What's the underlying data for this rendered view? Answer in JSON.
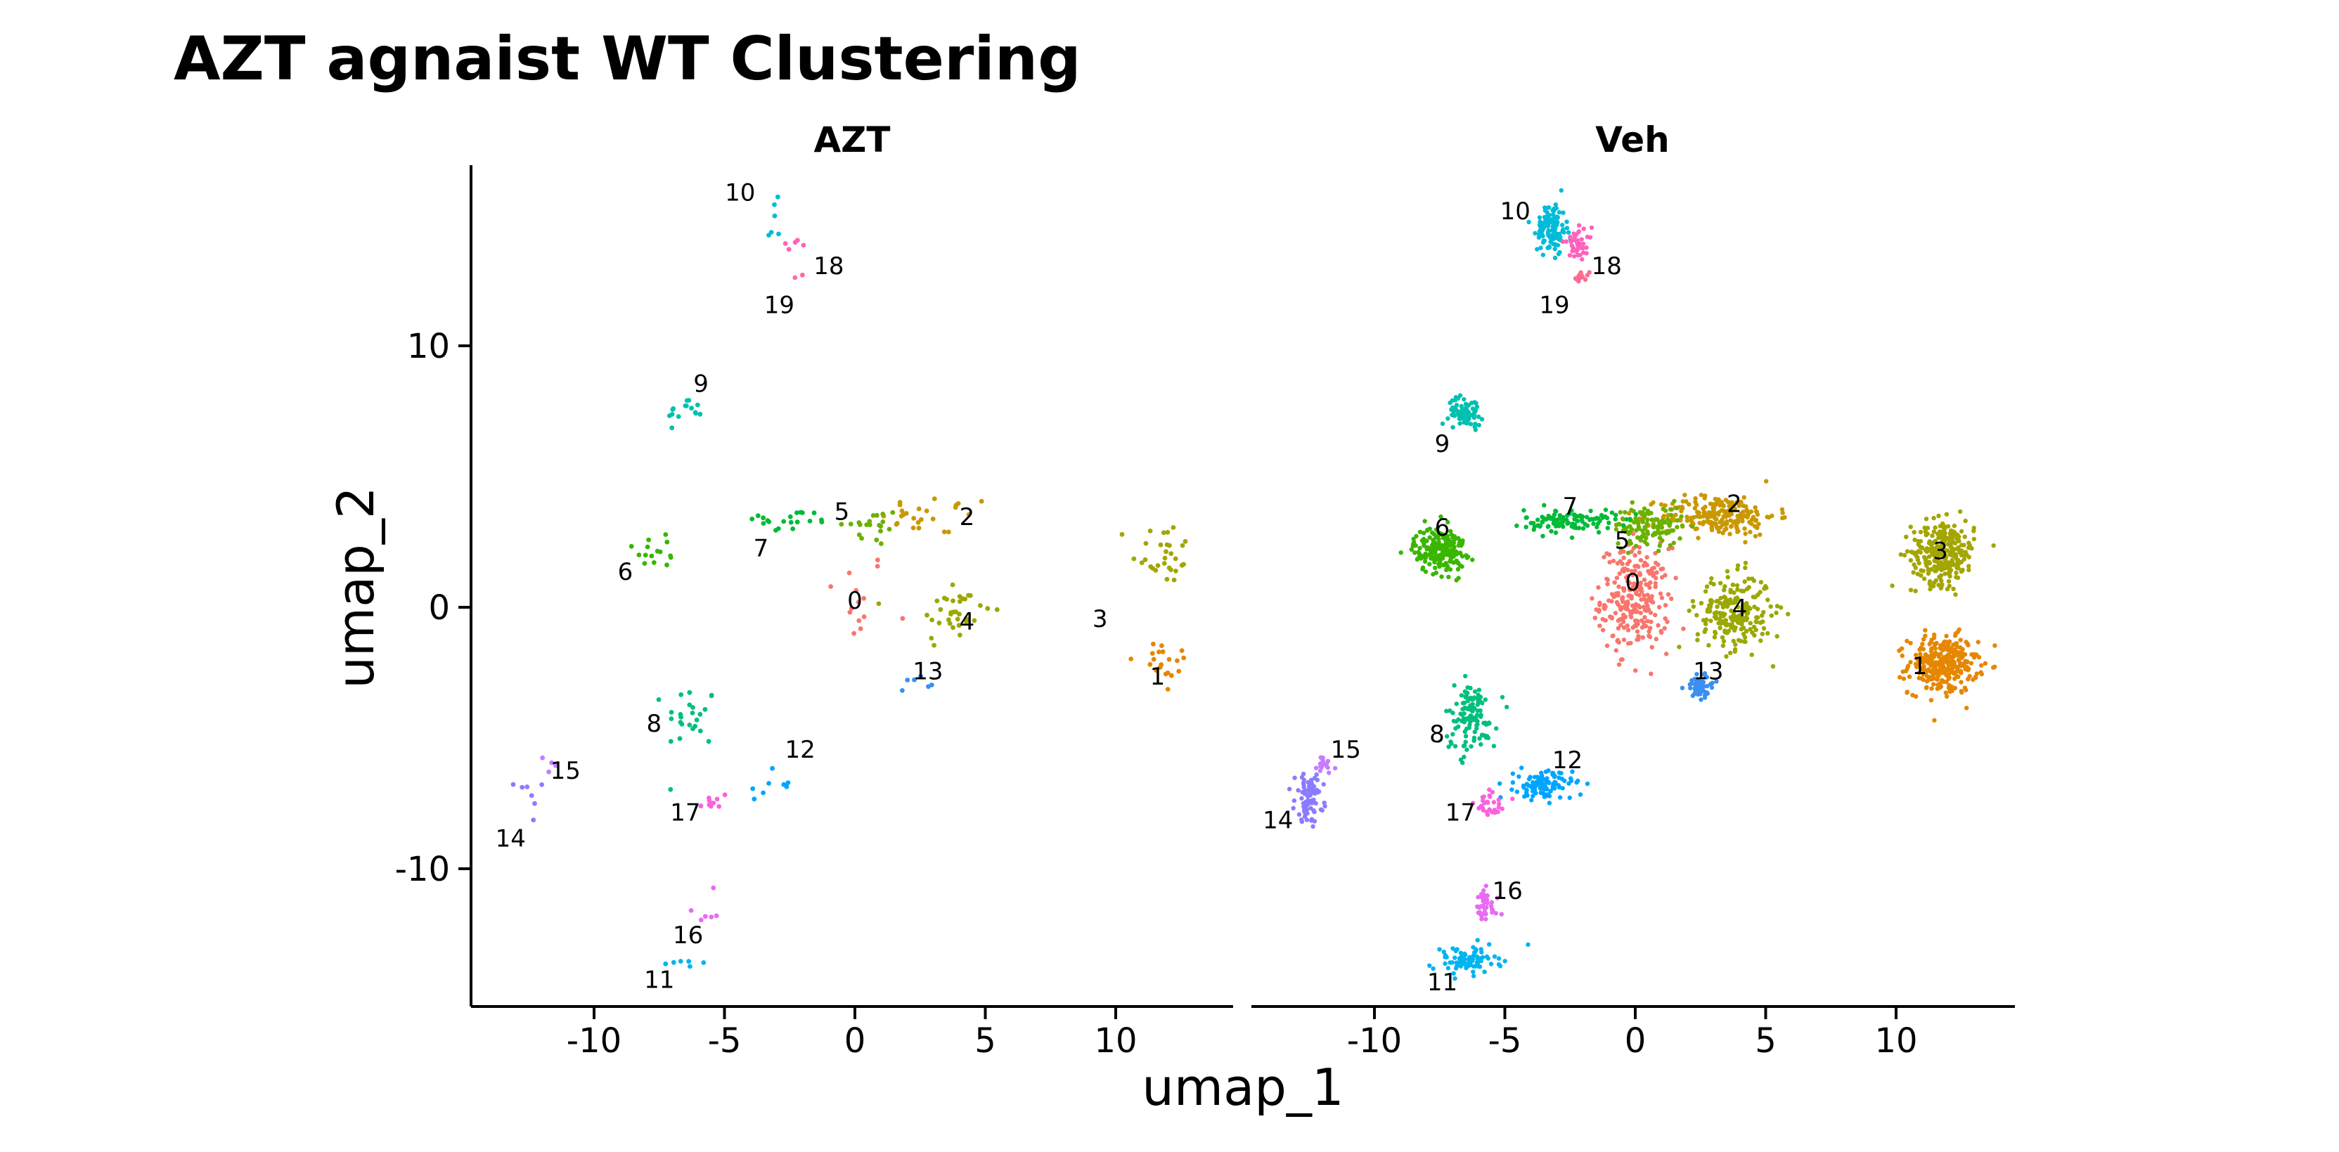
{
  "title": "AZT agnaist WT Clustering",
  "chart_data": {
    "type": "scatter",
    "title": "AZT agnaist WT Clustering",
    "xlabel": "umap_1",
    "ylabel": "umap_2",
    "xlim": [
      -14.5,
      14.5
    ],
    "ylim": [
      -15.2,
      17.0
    ],
    "x_ticks": [
      "-10",
      "-5",
      "0",
      "5",
      "10"
    ],
    "y_ticks": [
      "-10",
      "0",
      "10"
    ],
    "facets": [
      "AZT",
      "Veh"
    ],
    "clusters": [
      {
        "id": "0",
        "color": "#F8766D",
        "label_xy": [
          0.0,
          0.3
        ],
        "spread": [
          1.2,
          1.8
        ],
        "count": [
          14,
          260
        ]
      },
      {
        "id": "1",
        "color": "#E58700",
        "label_xy": [
          11.8,
          -2.2
        ],
        "spread": [
          1.2,
          1.0
        ],
        "count": [
          20,
          300
        ]
      },
      {
        "id": "2",
        "color": "#C99800",
        "label_xy": [
          3.2,
          3.5
        ],
        "spread": [
          2.0,
          0.7
        ],
        "count": [
          25,
          220
        ]
      },
      {
        "id": "3",
        "color": "#A3A500",
        "label_xy": [
          11.8,
          2.1
        ],
        "spread": [
          1.1,
          1.1
        ],
        "count": [
          30,
          280
        ]
      },
      {
        "id": "4",
        "color": "#9AA800",
        "label_xy": [
          3.8,
          -0.2
        ],
        "spread": [
          1.3,
          1.3
        ],
        "count": [
          35,
          230
        ]
      },
      {
        "id": "5",
        "color": "#6BB100",
        "label_xy": [
          0.5,
          3.1
        ],
        "spread": [
          1.2,
          0.7
        ],
        "count": [
          20,
          120
        ]
      },
      {
        "id": "6",
        "color": "#39B600",
        "label_xy": [
          -7.5,
          2.2
        ],
        "spread": [
          0.9,
          0.8
        ],
        "count": [
          15,
          200
        ]
      },
      {
        "id": "7",
        "color": "#00BA38",
        "label_xy": [
          -2.5,
          3.3
        ],
        "spread": [
          1.6,
          0.4
        ],
        "count": [
          20,
          110
        ]
      },
      {
        "id": "8",
        "color": "#00BF7D",
        "label_xy": [
          -6.3,
          -4.2
        ],
        "spread": [
          0.9,
          1.2
        ],
        "count": [
          25,
          120
        ]
      },
      {
        "id": "9",
        "color": "#00C0AF",
        "label_xy": [
          -6.5,
          7.5
        ],
        "spread": [
          0.6,
          0.5
        ],
        "count": [
          15,
          70
        ]
      },
      {
        "id": "10",
        "color": "#00BCD8",
        "label_xy": [
          -3.2,
          14.5
        ],
        "spread": [
          0.5,
          0.9
        ],
        "count": [
          6,
          120
        ]
      },
      {
        "id": "11",
        "color": "#00B4EF",
        "label_xy": [
          -6.5,
          -13.5
        ],
        "spread": [
          1.2,
          0.5
        ],
        "count": [
          6,
          80
        ]
      },
      {
        "id": "12",
        "color": "#00A5FF",
        "label_xy": [
          -3.5,
          -6.8
        ],
        "spread": [
          1.0,
          0.5
        ],
        "count": [
          8,
          110
        ]
      },
      {
        "id": "13",
        "color": "#3A8FF0",
        "label_xy": [
          2.5,
          -3.0
        ],
        "spread": [
          0.5,
          0.4
        ],
        "count": [
          6,
          60
        ]
      },
      {
        "id": "14",
        "color": "#8B7BFF",
        "label_xy": [
          -12.5,
          -7.3
        ],
        "spread": [
          0.5,
          0.8
        ],
        "count": [
          7,
          80
        ]
      },
      {
        "id": "15",
        "color": "#C77CFF",
        "label_xy": [
          -12.0,
          -6.0
        ],
        "spread": [
          0.4,
          0.5
        ],
        "count": [
          4,
          20
        ]
      },
      {
        "id": "16",
        "color": "#E76BF3",
        "label_xy": [
          -5.8,
          -11.5
        ],
        "spread": [
          0.5,
          0.6
        ],
        "count": [
          6,
          40
        ]
      },
      {
        "id": "17",
        "color": "#FA62DB",
        "label_xy": [
          -5.5,
          -7.5
        ],
        "spread": [
          0.6,
          0.6
        ],
        "count": [
          10,
          30
        ]
      },
      {
        "id": "18",
        "color": "#FF62BC",
        "label_xy": [
          -2.2,
          13.9
        ],
        "spread": [
          0.5,
          0.5
        ],
        "count": [
          5,
          40
        ]
      },
      {
        "id": "19",
        "color": "#FF6C91",
        "label_xy": [
          -2.1,
          12.6
        ],
        "spread": [
          0.3,
          0.2
        ],
        "count": [
          2,
          15
        ]
      }
    ],
    "cluster_labels": [
      [
        {
          "id": "10",
          "xy": [
            -4.4,
            15.8
          ]
        },
        {
          "id": "18",
          "xy": [
            -1.0,
            13.0
          ]
        },
        {
          "id": "19",
          "xy": [
            -2.9,
            11.5
          ]
        },
        {
          "id": "9",
          "xy": [
            -5.9,
            8.5
          ]
        },
        {
          "id": "5",
          "xy": [
            -0.5,
            3.6
          ]
        },
        {
          "id": "2",
          "xy": [
            4.3,
            3.4
          ]
        },
        {
          "id": "7",
          "xy": [
            -3.6,
            2.2
          ]
        },
        {
          "id": "6",
          "xy": [
            -8.8,
            1.3
          ]
        },
        {
          "id": "0",
          "xy": [
            0.0,
            0.2
          ]
        },
        {
          "id": "4",
          "xy": [
            4.3,
            -0.6
          ]
        },
        {
          "id": "3",
          "xy": [
            9.4,
            -0.5
          ]
        },
        {
          "id": "13",
          "xy": [
            2.8,
            -2.5
          ]
        },
        {
          "id": "1",
          "xy": [
            11.6,
            -2.7
          ]
        },
        {
          "id": "8",
          "xy": [
            -7.7,
            -4.5
          ]
        },
        {
          "id": "12",
          "xy": [
            -2.1,
            -5.5
          ]
        },
        {
          "id": "15",
          "xy": [
            -11.1,
            -6.3
          ]
        },
        {
          "id": "17",
          "xy": [
            -6.5,
            -7.9
          ]
        },
        {
          "id": "14",
          "xy": [
            -13.2,
            -8.9
          ]
        },
        {
          "id": "16",
          "xy": [
            -6.4,
            -12.6
          ]
        },
        {
          "id": "11",
          "xy": [
            -7.5,
            -14.3
          ]
        }
      ],
      [
        {
          "id": "10",
          "xy": [
            -4.6,
            15.1
          ]
        },
        {
          "id": "18",
          "xy": [
            -1.1,
            13.0
          ]
        },
        {
          "id": "19",
          "xy": [
            -3.1,
            11.5
          ]
        },
        {
          "id": "9",
          "xy": [
            -7.4,
            6.2
          ]
        },
        {
          "id": "7",
          "xy": [
            -2.5,
            3.8
          ]
        },
        {
          "id": "2",
          "xy": [
            3.8,
            3.9
          ]
        },
        {
          "id": "6",
          "xy": [
            -7.4,
            3.0
          ]
        },
        {
          "id": "5",
          "xy": [
            -0.5,
            2.5
          ]
        },
        {
          "id": "3",
          "xy": [
            11.7,
            2.1
          ]
        },
        {
          "id": "0",
          "xy": [
            -0.1,
            0.9
          ]
        },
        {
          "id": "4",
          "xy": [
            4.0,
            -0.1
          ]
        },
        {
          "id": "13",
          "xy": [
            2.8,
            -2.5
          ]
        },
        {
          "id": "1",
          "xy": [
            10.9,
            -2.3
          ]
        },
        {
          "id": "8",
          "xy": [
            -7.6,
            -4.9
          ]
        },
        {
          "id": "12",
          "xy": [
            -2.6,
            -5.9
          ]
        },
        {
          "id": "15",
          "xy": [
            -11.1,
            -5.5
          ]
        },
        {
          "id": "17",
          "xy": [
            -6.7,
            -7.9
          ]
        },
        {
          "id": "14",
          "xy": [
            -13.7,
            -8.2
          ]
        },
        {
          "id": "16",
          "xy": [
            -4.9,
            -10.9
          ]
        },
        {
          "id": "11",
          "xy": [
            -7.4,
            -14.4
          ]
        }
      ]
    ],
    "legend": "none",
    "grid": false
  }
}
